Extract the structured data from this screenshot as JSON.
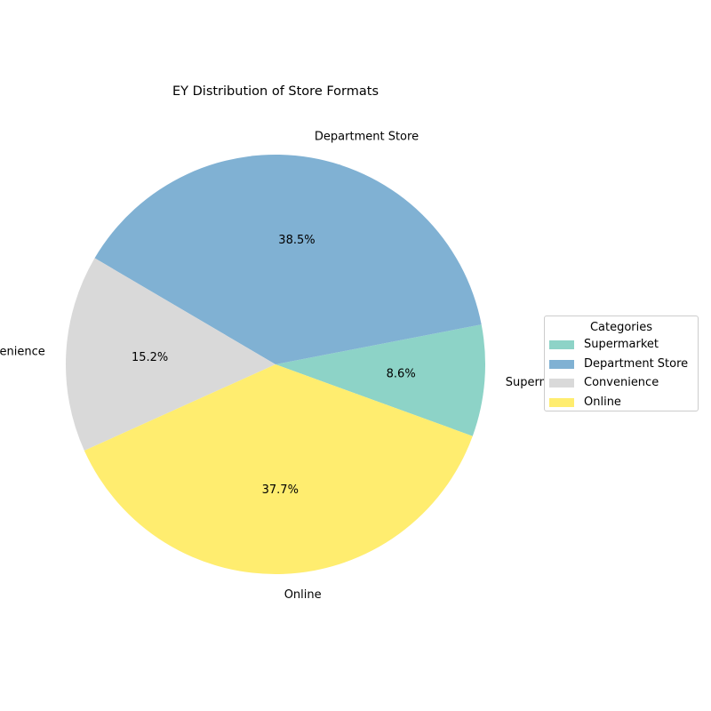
{
  "chart_data": {
    "type": "pie",
    "title": "EY Distribution of Store Formats",
    "slices": [
      {
        "label": "Supermarket",
        "value": 8.6,
        "pct_label": "8.6%",
        "color": "#8dd3c7"
      },
      {
        "label": "Department Store",
        "value": 38.5,
        "pct_label": "38.5%",
        "color": "#80b1d3"
      },
      {
        "label": "Convenience",
        "value": 15.2,
        "pct_label": "15.2%",
        "color": "#d9d9d9"
      },
      {
        "label": "Online",
        "value": 37.7,
        "pct_label": "37.7%",
        "color": "#ffed6f"
      }
    ],
    "start_angle_deg": -20,
    "direction": "counterclockwise",
    "legend": {
      "title": "Categories",
      "placement": "right"
    }
  }
}
